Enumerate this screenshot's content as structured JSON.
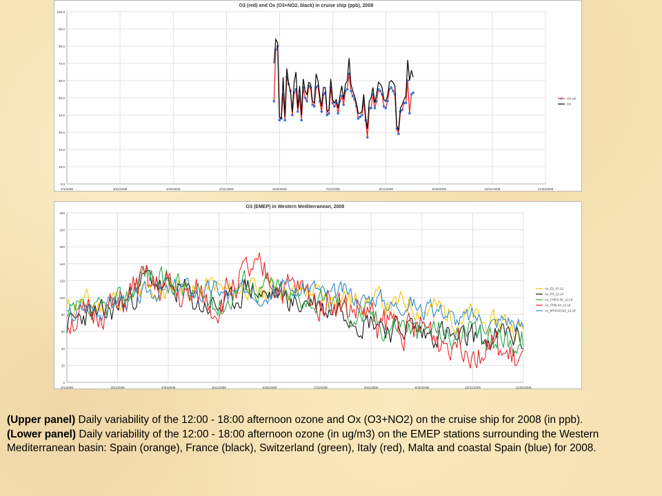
{
  "chart_data": [
    {
      "type": "line",
      "title": "O3 (red) and Ox (O3+NO2, black) in cruise ship (ppb), 2008",
      "xlabel": "",
      "ylabel": "",
      "ylim": [
        0,
        100
      ],
      "y_ticks": [
        "0.0",
        "10.0",
        "20.0",
        "30.0",
        "40.0",
        "50.0",
        "60.0",
        "70.0",
        "80.0",
        "90.0",
        "100.0"
      ],
      "x_ticks": [
        "3/1/2008",
        "3/31/2008",
        "4/30/2008",
        "5/31/2008",
        "6/30/2008",
        "7/31/2008",
        "8/31/2008",
        "9/30/2008",
        "10/31/2008",
        "11/30/2008"
      ],
      "grid": true,
      "legend_position": "right",
      "series": [
        {
          "name": "O3-cal",
          "color": "#e8262a",
          "markers": true,
          "marker_color": "#3f6fd6",
          "values": [
            48,
            78,
            80,
            37,
            38,
            52,
            37,
            62,
            58,
            54,
            40,
            53,
            55,
            42,
            51,
            37,
            56,
            50,
            48,
            57,
            56,
            46,
            45,
            56,
            57,
            48,
            42,
            52,
            53,
            40,
            41,
            56,
            47,
            45,
            47,
            41,
            48,
            51,
            46,
            54,
            55,
            64,
            54,
            51,
            49,
            45,
            38,
            39,
            40,
            48,
            37,
            27,
            44,
            44,
            52,
            44,
            48,
            55,
            54,
            52,
            45,
            44,
            48,
            55,
            56,
            54,
            52,
            32,
            29,
            42,
            43,
            47,
            47,
            60,
            41,
            52,
            53
          ]
        },
        {
          "name": "OX",
          "color": "#000000",
          "markers": false,
          "values": [
            70,
            84,
            82,
            39,
            38,
            62,
            39,
            67,
            58,
            54,
            42,
            59,
            65,
            44,
            57,
            40,
            61,
            54,
            52,
            59,
            58,
            48,
            47,
            64,
            60,
            51,
            45,
            56,
            56,
            42,
            43,
            61,
            49,
            47,
            49,
            44,
            51,
            57,
            49,
            58,
            60,
            73,
            58,
            54,
            51,
            47,
            41,
            41,
            42,
            52,
            39,
            32,
            48,
            50,
            56,
            47,
            52,
            59,
            58,
            56,
            49,
            48,
            51,
            59,
            60,
            59,
            57,
            34,
            31,
            44,
            46,
            49,
            51,
            72,
            60,
            66,
            62
          ]
        }
      ]
    },
    {
      "type": "line",
      "title": "O3 (EMEP) in Western Mediterranean, 2008",
      "xlabel": "",
      "ylabel": "",
      "ylim": [
        0,
        200
      ],
      "y_ticks": [
        "0",
        "20",
        "40",
        "60",
        "80",
        "100",
        "120",
        "140",
        "160",
        "180",
        "200"
      ],
      "x_ticks": [
        "3/1/2008",
        "3/31/2008",
        "4/30/2008",
        "5/31/2008",
        "6/30/2008",
        "7/31/2008",
        "8/31/2008",
        "9/30/2008",
        "10/31/2008",
        "11/30/2008"
      ],
      "grid": true,
      "legend_position": "right",
      "series": [
        {
          "name": "Av_ES_07-12",
          "color": "#f5c400",
          "base": 84,
          "amp": 16,
          "noise": 12,
          "seed": 11,
          "anchors": [
            [
              0,
              90
            ],
            [
              40,
              95
            ],
            [
              85,
              112
            ],
            [
              130,
              110
            ],
            [
              185,
              108
            ],
            [
              215,
              100
            ],
            [
              250,
              95
            ],
            [
              285,
              88
            ],
            [
              340,
              70
            ],
            [
              365,
              66
            ]
          ]
        },
        {
          "name": "Av_FR_12-14",
          "color": "#1a1a1a",
          "base": 80,
          "amp": 18,
          "noise": 14,
          "seed": 23,
          "anchors": [
            [
              0,
              72
            ],
            [
              40,
              85
            ],
            [
              62,
              120
            ],
            [
              85,
              110
            ],
            [
              120,
              85
            ],
            [
              145,
              110
            ],
            [
              185,
              95
            ],
            [
              215,
              88
            ],
            [
              250,
              68
            ],
            [
              285,
              60
            ],
            [
              320,
              50
            ],
            [
              365,
              55
            ]
          ]
        },
        {
          "name": "Av_CHEO-08_12-18",
          "color": "#2aa84a",
          "base": 82,
          "amp": 18,
          "noise": 14,
          "seed": 37,
          "anchors": [
            [
              0,
              75
            ],
            [
              40,
              90
            ],
            [
              62,
              130
            ],
            [
              85,
              118
            ],
            [
              120,
              90
            ],
            [
              145,
              120
            ],
            [
              185,
              100
            ],
            [
              215,
              92
            ],
            [
              250,
              72
            ],
            [
              285,
              62
            ],
            [
              320,
              55
            ],
            [
              365,
              50
            ]
          ]
        },
        {
          "name": "Av_ITI05-04_12-18",
          "color": "#e8262a",
          "base": 84,
          "amp": 22,
          "noise": 18,
          "seed": 51,
          "anchors": [
            [
              0,
              70
            ],
            [
              40,
              88
            ],
            [
              62,
              118
            ],
            [
              85,
              105
            ],
            [
              120,
              92
            ],
            [
              145,
              132
            ],
            [
              185,
              105
            ],
            [
              215,
              95
            ],
            [
              250,
              72
            ],
            [
              285,
              60
            ],
            [
              320,
              45
            ],
            [
              350,
              35
            ],
            [
              365,
              20
            ]
          ]
        },
        {
          "name": "Av_MT03-ES10_12-18",
          "color": "#2f8ac7",
          "base": 90,
          "amp": 12,
          "noise": 10,
          "seed": 67,
          "anchors": [
            [
              0,
              80
            ],
            [
              40,
              95
            ],
            [
              85,
              112
            ],
            [
              130,
              105
            ],
            [
              185,
              112
            ],
            [
              215,
              105
            ],
            [
              250,
              98
            ],
            [
              285,
              88
            ],
            [
              320,
              75
            ],
            [
              365,
              70
            ]
          ]
        }
      ]
    }
  ],
  "caption": {
    "upper_label": "(Upper panel)",
    "upper_text": " Daily variability of the 12:00 - 18:00 afternoon ozone and Ox (O3+NO2) on the cruise ship for 2008 (in ppb).",
    "lower_label": "(Lower panel)",
    "lower_text": " Daily variability of the 12:00 - 18:00 afternoon ozone  (in ug/m3) on the EMEP stations surrounding the Western Mediterranean basin: Spain (orange), France (black), Switzerland (green), Italy (red), Malta and coastal Spain (blue) for 2008."
  }
}
